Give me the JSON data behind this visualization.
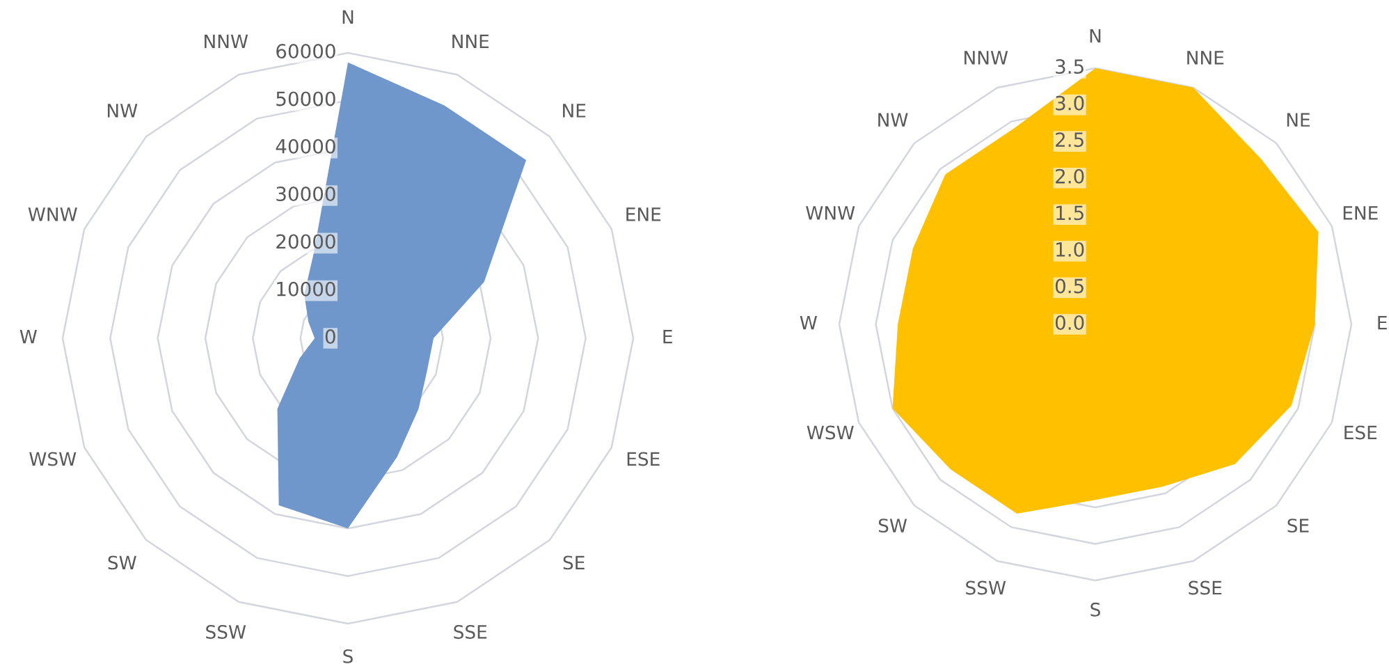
{
  "chart_data": [
    {
      "type": "radar",
      "categories": [
        "N",
        "NNE",
        "NE",
        "ENE",
        "E",
        "ESE",
        "SE",
        "SSE",
        "S",
        "SSW",
        "SW",
        "WSW",
        "W",
        "WNW",
        "NW",
        "NNW"
      ],
      "series": [
        {
          "color": "#6f97cb",
          "values": [
            58000,
            53000,
            53000,
            31000,
            18000,
            18000,
            21000,
            27000,
            40000,
            38000,
            21000,
            11000,
            7000,
            9000,
            13000,
            19000
          ]
        }
      ],
      "ylim": [
        0,
        60000
      ],
      "yticks": [
        0,
        10000,
        20000,
        30000,
        40000,
        50000,
        60000
      ],
      "grid": true
    },
    {
      "type": "radar",
      "categories": [
        "N",
        "NNE",
        "NE",
        "ENE",
        "E",
        "ESE",
        "SE",
        "SSE",
        "S",
        "SSW",
        "SW",
        "WSW",
        "W",
        "WNW",
        "NW",
        "NNW"
      ],
      "series": [
        {
          "color": "#ffc000",
          "values": [
            3.5,
            3.5,
            3.2,
            3.3,
            3.0,
            2.9,
            2.7,
            2.4,
            2.4,
            2.8,
            2.8,
            3.0,
            2.7,
            2.7,
            2.9,
            2.9
          ]
        }
      ],
      "ylim": [
        0,
        3.5
      ],
      "yticks": [
        {
          "value": 0,
          "label": "0.0"
        },
        {
          "value": 0.5,
          "label": "0.5"
        },
        {
          "value": 1,
          "label": "1.0"
        },
        {
          "value": 1.5,
          "label": "1.5"
        },
        {
          "value": 2,
          "label": "2.0"
        },
        {
          "value": 2.5,
          "label": "2.5"
        },
        {
          "value": 3,
          "label": "3.0"
        },
        {
          "value": 3.5,
          "label": "3.5"
        }
      ],
      "grid": true
    }
  ]
}
